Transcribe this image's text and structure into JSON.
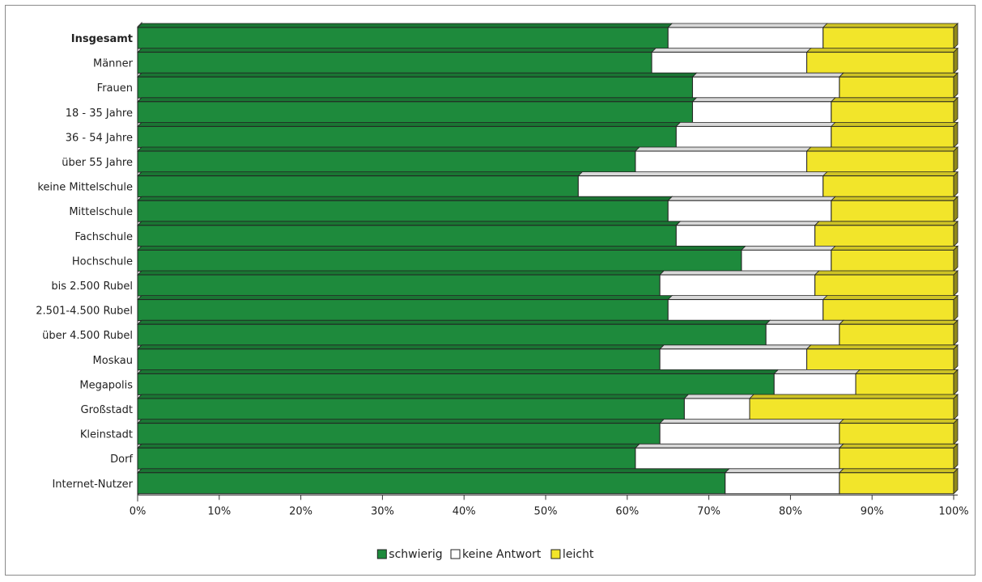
{
  "chart_data": {
    "type": "bar",
    "orientation": "horizontal",
    "stacked": true,
    "percent_stacked": true,
    "categories": [
      "Insgesamt",
      "Männer",
      "Frauen",
      "18 - 35 Jahre",
      "36 - 54 Jahre",
      "über 55 Jahre",
      "keine Mittelschule",
      "Mittelschule",
      "Fachschule",
      "Hochschule",
      "bis 2.500 Rubel",
      "2.501-4.500  Rubel",
      "über 4.500 Rubel",
      "Moskau",
      "Megapolis",
      "Großstadt",
      "Kleinstadt",
      "Dorf",
      "Internet-Nutzer"
    ],
    "bold_categories": [
      "Insgesamt"
    ],
    "series": [
      {
        "name": "schwierig",
        "color": "#1e8a3c",
        "values": [
          65,
          63,
          68,
          68,
          66,
          61,
          54,
          65,
          66,
          74,
          64,
          65,
          77,
          64,
          78,
          67,
          64,
          61,
          72
        ]
      },
      {
        "name": "keine Antwort",
        "color": "#ffffff",
        "values": [
          19,
          19,
          18,
          17,
          19,
          21,
          30,
          20,
          17,
          11,
          19,
          19,
          9,
          18,
          10,
          8,
          22,
          25,
          14
        ]
      },
      {
        "name": "leicht",
        "color": "#f2e52a",
        "values": [
          16,
          18,
          14,
          15,
          15,
          18,
          16,
          15,
          17,
          15,
          17,
          16,
          14,
          18,
          12,
          25,
          14,
          14,
          14
        ]
      }
    ],
    "x_ticks": [
      "0%",
      "10%",
      "20%",
      "30%",
      "40%",
      "50%",
      "60%",
      "70%",
      "80%",
      "90%",
      "100%"
    ],
    "xlim": [
      0,
      100
    ],
    "legend": "bottom-center",
    "title": "",
    "xlabel": "",
    "ylabel": ""
  }
}
